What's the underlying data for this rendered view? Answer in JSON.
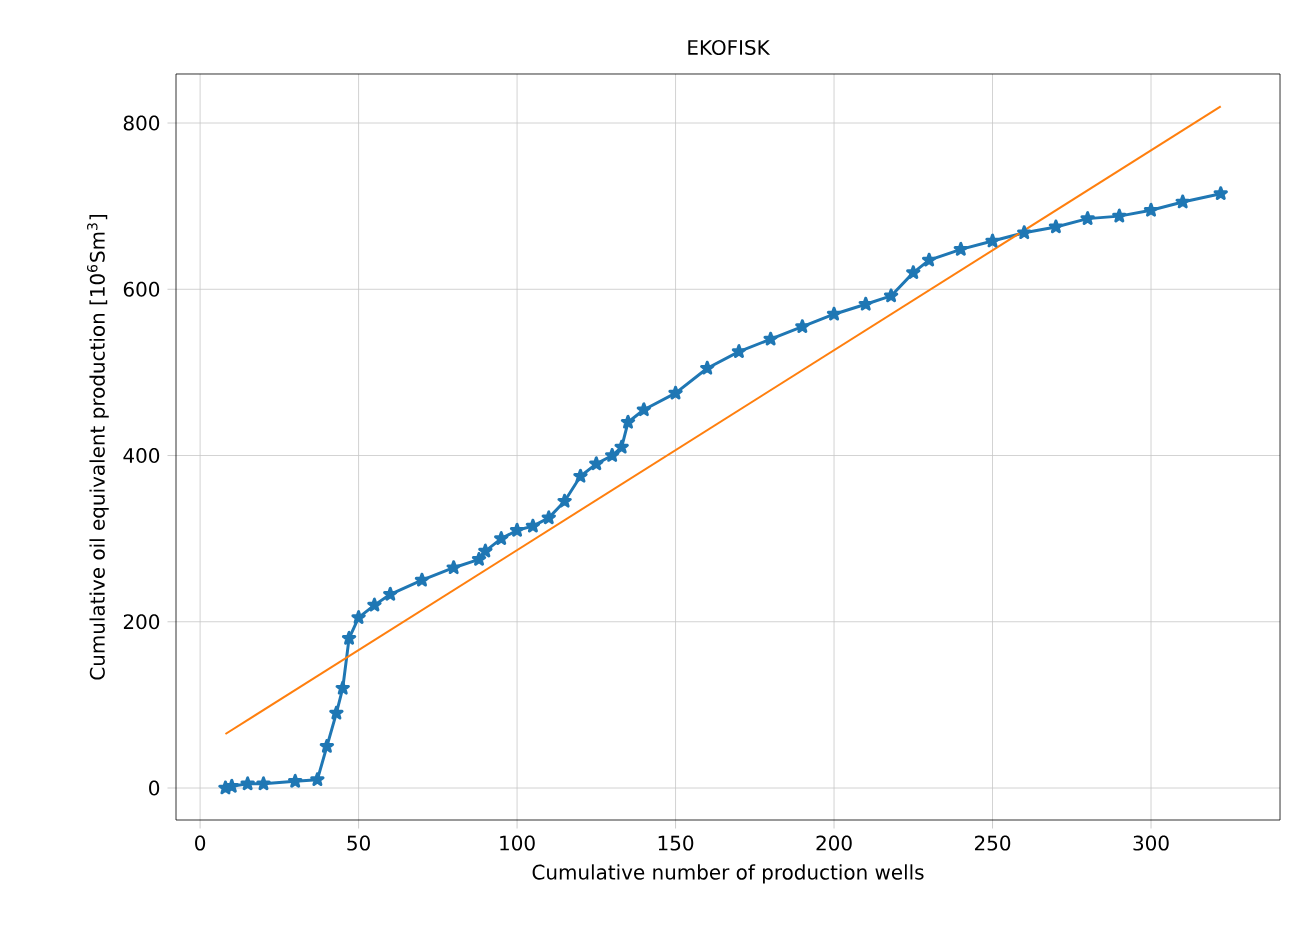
{
  "chart_data": {
    "type": "line",
    "title": "EKOFISK",
    "xlabel": "Cumulative number of production wells",
    "ylabel": "Cumulative oil equivalent production [10$^{6}$Sm$^{3}$]",
    "xlim": [
      -7.6,
      340.7
    ],
    "ylim": [
      -38.5,
      859
    ],
    "xticks": [
      0,
      50,
      100,
      150,
      200,
      250,
      300
    ],
    "yticks": [
      0,
      200,
      400,
      600,
      800
    ],
    "grid": true,
    "series": [
      {
        "color": "#1f77b4",
        "marker": "star",
        "x": [
          8,
          10,
          15,
          20,
          30,
          37,
          40,
          43,
          45,
          47,
          50,
          55,
          60,
          70,
          80,
          88,
          90,
          95,
          100,
          105,
          110,
          115,
          120,
          125,
          130,
          133,
          135,
          140,
          150,
          160,
          170,
          180,
          190,
          200,
          210,
          218,
          225,
          230,
          240,
          250,
          260,
          270,
          280,
          290,
          300,
          310,
          322
        ],
        "values": [
          0,
          2,
          5,
          5,
          8,
          10,
          50,
          90,
          120,
          180,
          205,
          220,
          233,
          250,
          265,
          275,
          285,
          300,
          310,
          315,
          325,
          345,
          375,
          390,
          400,
          410,
          440,
          455,
          475,
          505,
          525,
          540,
          555,
          570,
          582,
          592,
          620,
          635,
          648,
          658,
          668,
          675,
          685,
          688,
          695,
          705,
          715
        ]
      },
      {
        "color": "#ff7f0e",
        "marker": "none",
        "x": [
          8,
          322
        ],
        "values": [
          65,
          820
        ]
      }
    ]
  }
}
